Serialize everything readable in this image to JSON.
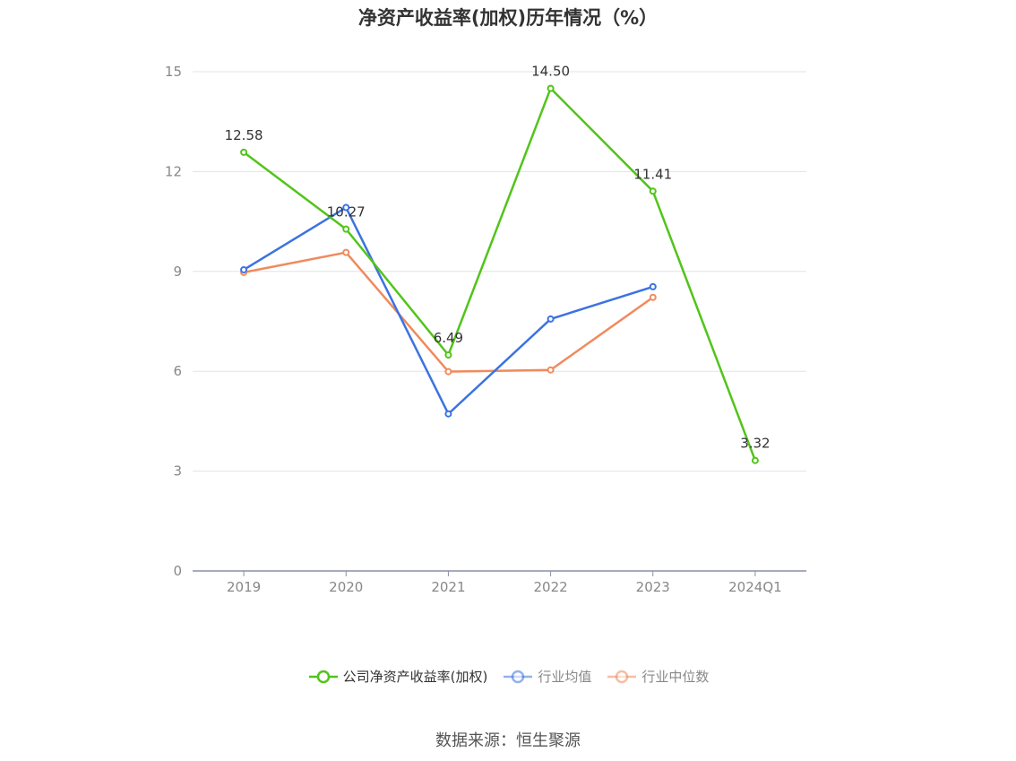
{
  "chart_data": {
    "type": "line",
    "title": "净资产收益率(加权)历年情况（%）",
    "categories": [
      "2019",
      "2020",
      "2021",
      "2022",
      "2023",
      "2024Q1"
    ],
    "ylim": [
      0,
      15
    ],
    "yticks": [
      0,
      3,
      6,
      9,
      12,
      15
    ],
    "grid": true,
    "legend_position": "bottom",
    "series": [
      {
        "name": "公司净资产收益率(加权)",
        "color": "#52c41a",
        "values": [
          12.58,
          10.27,
          6.49,
          14.5,
          11.41,
          3.32
        ],
        "labels": [
          "12.58",
          "10.27",
          "6.49",
          "14.50",
          "11.41",
          "3.32"
        ]
      },
      {
        "name": "行业均值",
        "color": "#3b73e0",
        "values": [
          9.05,
          10.92,
          4.72,
          7.57,
          8.54,
          null
        ]
      },
      {
        "name": "行业中位数",
        "color": "#f08a5d",
        "values": [
          8.97,
          9.57,
          5.99,
          6.04,
          8.22,
          null
        ]
      }
    ]
  },
  "source": "数据来源：恒生聚源"
}
